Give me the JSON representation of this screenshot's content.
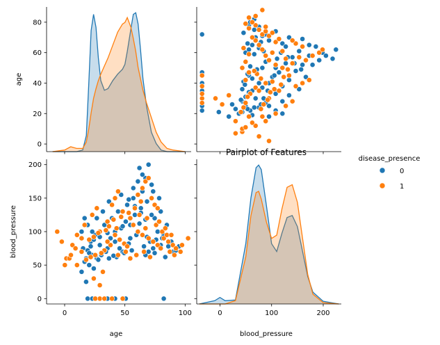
{
  "chart_data": {
    "type": "scatter",
    "title": "Pairplot of Features",
    "variables": [
      "age",
      "blood_pressure"
    ],
    "hue": {
      "title": "disease_presence",
      "levels": [
        {
          "label": "0",
          "color": "#1f77b4"
        },
        {
          "label": "1",
          "color": "#ff7f0e"
        }
      ]
    },
    "axes": {
      "age": {
        "ticks": [
          0,
          20,
          40,
          60,
          80
        ],
        "diag_ticks": [
          0,
          50,
          100
        ],
        "lim": [
          -5,
          90
        ],
        "diag_lim": [
          -15,
          105
        ]
      },
      "blood_pressure": {
        "ticks": [
          0,
          50,
          100,
          150,
          200
        ],
        "diag_ticks": [
          0,
          100,
          200
        ],
        "lim": [
          -8,
          208
        ],
        "diag_lim": [
          -45,
          235
        ]
      }
    },
    "kde": {
      "age": {
        "x": [
          -10,
          0,
          5,
          10,
          15,
          18,
          20,
          22,
          24,
          26,
          28,
          30,
          33,
          36,
          40,
          44,
          48,
          50,
          52,
          55,
          57,
          59,
          61,
          63,
          65,
          68,
          72,
          76,
          80,
          85,
          90,
          100
        ],
        "series": [
          {
            "level": "0",
            "y": [
              0,
              0,
              0,
              0,
              1,
              10,
              42,
              75,
              85,
              77,
              58,
              44,
              38,
              39,
              44,
              48,
              51,
              54,
              62,
              76,
              85,
              86,
              79,
              63,
              45,
              28,
              12,
              5,
              1,
              0,
              0,
              0
            ]
          },
          {
            "level": "1",
            "y": [
              0,
              1,
              3,
              2,
              2,
              6,
              14,
              24,
              33,
              39,
              44,
              48,
              53,
              58,
              66,
              74,
              79,
              80,
              83,
              77,
              70,
              62,
              52,
              45,
              38,
              30,
              21,
              12,
              6,
              2,
              1,
              0
            ]
          }
        ]
      },
      "blood_pressure": {
        "x": [
          -40,
          -10,
          0,
          10,
          30,
          50,
          60,
          70,
          75,
          80,
          90,
          100,
          110,
          120,
          130,
          140,
          150,
          160,
          170,
          180,
          200,
          230
        ],
        "series": [
          {
            "level": "0",
            "y": [
              0,
              5,
              10,
              5,
              6,
              92,
              162,
              208,
              212,
              205,
              150,
              92,
              80,
              108,
              132,
              135,
              118,
              80,
              42,
              18,
              4,
              0
            ]
          },
          {
            "level": "1",
            "y": [
              0,
              0,
              0,
              0,
              5,
              72,
              135,
              170,
              172,
              160,
              125,
              100,
              105,
              145,
              178,
              182,
              155,
              100,
              45,
              15,
              2,
              0
            ]
          }
        ]
      }
    },
    "scatter": {
      "series": [
        {
          "level": "0",
          "points": [
            [
              22,
              72
            ],
            [
              25,
              65
            ],
            [
              28,
              60
            ],
            [
              30,
              80
            ],
            [
              35,
              75
            ],
            [
              40,
              85
            ],
            [
              45,
              70
            ],
            [
              50,
              90
            ],
            [
              55,
              100
            ],
            [
              60,
              65
            ],
            [
              62,
              70
            ],
            [
              65,
              75
            ],
            [
              70,
              80
            ],
            [
              72,
              95
            ],
            [
              75,
              78
            ],
            [
              78,
              70
            ],
            [
              80,
              72
            ],
            [
              33,
              110
            ],
            [
              38,
              120
            ],
            [
              42,
              130
            ],
            [
              48,
              140
            ],
            [
              52,
              150
            ],
            [
              58,
              160
            ],
            [
              56,
              195
            ],
            [
              60,
              180
            ],
            [
              62,
              200
            ],
            [
              64,
              170
            ],
            [
              21,
              25
            ],
            [
              18,
              40
            ],
            [
              20,
              55
            ],
            [
              23,
              50
            ],
            [
              26,
              45
            ],
            [
              24,
              85
            ],
            [
              27,
              95
            ],
            [
              31,
              65
            ],
            [
              37,
              90
            ],
            [
              44,
              105
            ],
            [
              47,
              115
            ],
            [
              53,
              125
            ],
            [
              57,
              135
            ],
            [
              61,
              145
            ],
            [
              66,
              120
            ],
            [
              68,
              100
            ],
            [
              71,
              90
            ],
            [
              36,
              60
            ],
            [
              41,
              62
            ],
            [
              46,
              68
            ],
            [
              51,
              72
            ],
            [
              59,
              78
            ],
            [
              63,
              85
            ],
            [
              67,
              88
            ],
            [
              73,
              62
            ],
            [
              29,
              58
            ],
            [
              34,
              70
            ],
            [
              39,
              64
            ],
            [
              43,
              75
            ],
            [
              49,
              82
            ],
            [
              54,
              95
            ],
            [
              22,
              110
            ],
            [
              25,
              100
            ],
            [
              28,
              120
            ],
            [
              32,
              130
            ],
            [
              55,
              175
            ],
            [
              58,
              185
            ],
            [
              65,
              160
            ],
            [
              69,
              150
            ],
            [
              50,
              110
            ],
            [
              52,
              165
            ],
            [
              24,
              78
            ],
            [
              26,
              88
            ],
            [
              30,
              92
            ],
            [
              35,
              98
            ],
            [
              40,
              100
            ],
            [
              45,
              108
            ],
            [
              56,
              112
            ],
            [
              60,
              118
            ],
            [
              64,
              125
            ],
            [
              70,
              130
            ],
            [
              74,
              110
            ],
            [
              77,
              85
            ],
            [
              82,
              78
            ],
            [
              21,
              60
            ],
            [
              23,
              68
            ],
            [
              19,
              75
            ],
            [
              22,
              0
            ],
            [
              25,
              0
            ],
            [
              30,
              0
            ],
            [
              35,
              0
            ],
            [
              40,
              0
            ],
            [
              47,
              0
            ],
            [
              72,
              0
            ],
            [
              20,
              120
            ],
            [
              18,
              100
            ],
            [
              36,
              145
            ],
            [
              44,
              155
            ],
            [
              49,
              148
            ],
            [
              53,
              138
            ],
            [
              57,
              128
            ],
            [
              61,
              92
            ],
            [
              66,
              68
            ]
          ]
        },
        {
          "level": "1",
          "points": [
            [
              2,
              100
            ],
            [
              5,
              85
            ],
            [
              8,
              60
            ],
            [
              12,
              80
            ],
            [
              15,
              95
            ],
            [
              18,
              70
            ],
            [
              20,
              110
            ],
            [
              25,
              125
            ],
            [
              28,
              135
            ],
            [
              30,
              100
            ],
            [
              35,
              115
            ],
            [
              38,
              140
            ],
            [
              40,
              150
            ],
            [
              42,
              160
            ],
            [
              45,
              130
            ],
            [
              50,
              120
            ],
            [
              52,
              110
            ],
            [
              55,
              100
            ],
            [
              58,
              95
            ],
            [
              60,
              105
            ],
            [
              62,
              90
            ],
            [
              65,
              85
            ],
            [
              68,
              80
            ],
            [
              70,
              75
            ],
            [
              72,
              90
            ],
            [
              75,
              85
            ],
            [
              78,
              80
            ],
            [
              80,
              75
            ],
            [
              83,
              70
            ],
            [
              88,
              90
            ],
            [
              40,
              95
            ],
            [
              43,
              88
            ],
            [
              46,
              82
            ],
            [
              48,
              78
            ],
            [
              33,
              72
            ],
            [
              31,
              68
            ],
            [
              27,
              65
            ],
            [
              24,
              62
            ],
            [
              21,
              58
            ],
            [
              10,
              60
            ],
            [
              7,
              50
            ],
            [
              15,
              50
            ],
            [
              55,
              155
            ],
            [
              58,
              165
            ],
            [
              60,
              175
            ],
            [
              62,
              180
            ],
            [
              64,
              150
            ],
            [
              66,
              140
            ],
            [
              68,
              135
            ],
            [
              57,
              145
            ],
            [
              53,
              135
            ],
            [
              49,
              128
            ],
            [
              44,
              122
            ],
            [
              39,
              118
            ],
            [
              36,
              108
            ],
            [
              34,
              102
            ],
            [
              29,
              98
            ],
            [
              26,
              92
            ],
            [
              23,
              88
            ],
            [
              67,
              110
            ],
            [
              71,
              100
            ],
            [
              74,
              95
            ],
            [
              76,
              70
            ],
            [
              79,
              65
            ],
            [
              30,
              0
            ],
            [
              33,
              0
            ],
            [
              38,
              0
            ],
            [
              27,
              0
            ],
            [
              45,
              0
            ],
            [
              50,
              60
            ],
            [
              54,
              65
            ],
            [
              59,
              70
            ],
            [
              63,
              62
            ],
            [
              47,
              70
            ],
            [
              42,
              65
            ],
            [
              37,
              80
            ],
            [
              41,
              105
            ],
            [
              56,
              125
            ],
            [
              61,
              120
            ],
            [
              69,
              115
            ],
            [
              30,
              20
            ],
            [
              26,
              30
            ],
            [
              32,
              40
            ],
            [
              73,
              105
            ],
            [
              77,
              95
            ],
            [
              84,
              80
            ],
            [
              18,
              90
            ],
            [
              14,
              75
            ],
            [
              11,
              65
            ],
            [
              35,
              85
            ]
          ]
        }
      ]
    }
  }
}
